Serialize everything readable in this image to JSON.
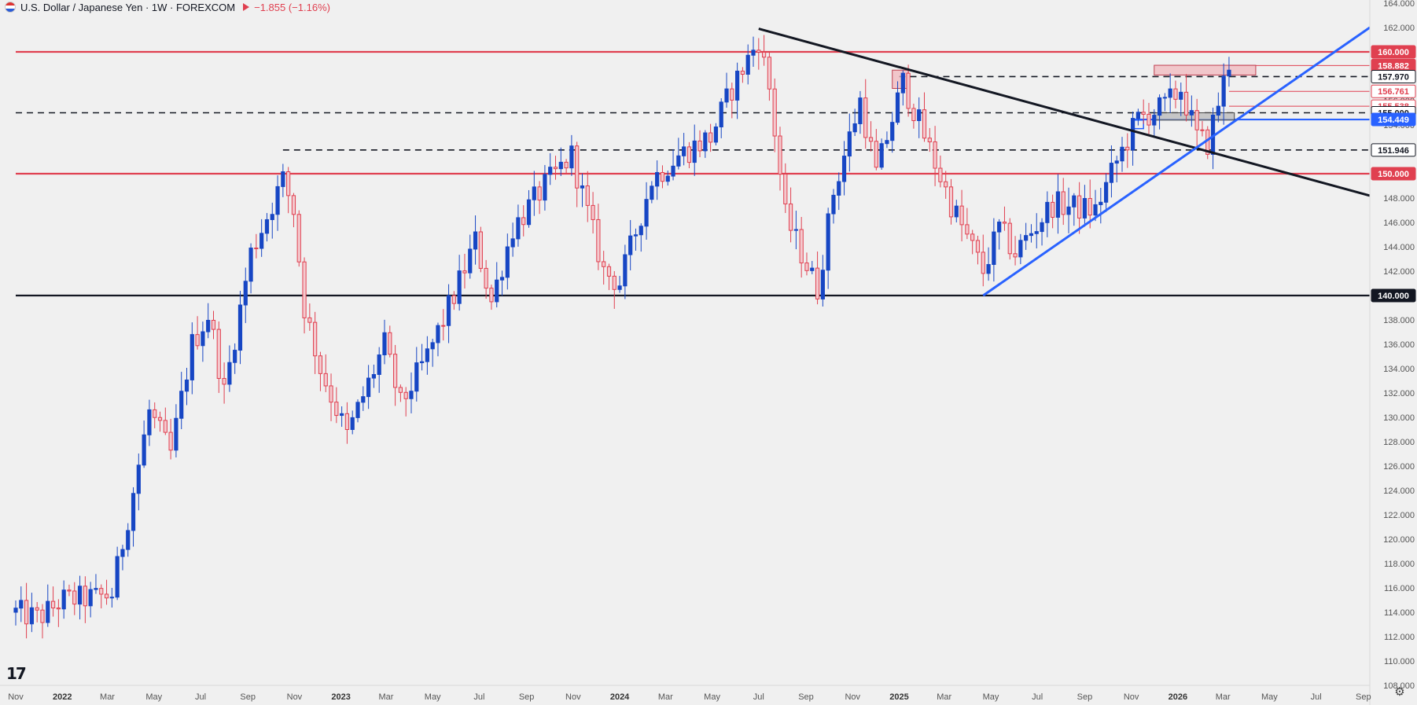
{
  "header": {
    "title": "U.S. Dollar / Japanese Yen · 1W · FOREXCOM",
    "change": "−1.855 (−1.16%)"
  },
  "colors": {
    "background": "#f0f0f0",
    "up": "#1746c4",
    "down": "#e04050",
    "red_line": "#e04050",
    "blue_line": "#2962ff",
    "black_line": "#131722"
  },
  "icons": [
    "us-flag-icon",
    "tradingview-logo-icon",
    "settings-gear-icon"
  ],
  "chart_data": {
    "type": "candlestick",
    "y_axis": {
      "min": 108,
      "max": 164,
      "tick_step": 2,
      "tick_labels": [
        "164.000",
        "162.000",
        "160.000",
        "158.000",
        "156.000",
        "154.000",
        "152.000",
        "150.000",
        "148.000",
        "146.000",
        "144.000",
        "142.000",
        "140.000",
        "138.000",
        "136.000",
        "134.000",
        "132.000",
        "130.000",
        "128.000",
        "126.000",
        "124.000",
        "122.000",
        "120.000",
        "118.000",
        "116.000",
        "114.000",
        "112.000",
        "110.000",
        "108.000"
      ]
    },
    "x_axis": {
      "start": "2021-11-01",
      "end": "2026-09-30",
      "tick_labels": [
        {
          "label": "Nov",
          "date": "2021-11-01"
        },
        {
          "label": "2022",
          "date": "2022-01-01"
        },
        {
          "label": "Mar",
          "date": "2022-03-01"
        },
        {
          "label": "May",
          "date": "2022-05-01"
        },
        {
          "label": "Jul",
          "date": "2022-07-01"
        },
        {
          "label": "Sep",
          "date": "2022-09-01"
        },
        {
          "label": "Nov",
          "date": "2022-11-01"
        },
        {
          "label": "2023",
          "date": "2023-01-01"
        },
        {
          "label": "Mar",
          "date": "2023-03-01"
        },
        {
          "label": "May",
          "date": "2023-05-01"
        },
        {
          "label": "Jul",
          "date": "2023-07-01"
        },
        {
          "label": "Sep",
          "date": "2023-09-01"
        },
        {
          "label": "Nov",
          "date": "2023-11-01"
        },
        {
          "label": "2024",
          "date": "2024-01-01"
        },
        {
          "label": "Mar",
          "date": "2024-03-01"
        },
        {
          "label": "May",
          "date": "2024-05-01"
        },
        {
          "label": "Jul",
          "date": "2024-07-01"
        },
        {
          "label": "Sep",
          "date": "2024-09-01"
        },
        {
          "label": "Nov",
          "date": "2024-11-01"
        },
        {
          "label": "2025",
          "date": "2025-01-01"
        },
        {
          "label": "Mar",
          "date": "2025-03-01"
        },
        {
          "label": "May",
          "date": "2025-05-01"
        },
        {
          "label": "Jul",
          "date": "2025-07-01"
        },
        {
          "label": "Sep",
          "date": "2025-09-01"
        },
        {
          "label": "Nov",
          "date": "2025-11-01"
        },
        {
          "label": "2026",
          "date": "2026-01-01"
        },
        {
          "label": "Mar",
          "date": "2026-03-01"
        },
        {
          "label": "May",
          "date": "2026-05-01"
        },
        {
          "label": "Jul",
          "date": "2026-07-01"
        },
        {
          "label": "Sep",
          "date": "2026-09-01"
        }
      ]
    },
    "price_anchors": [
      {
        "date": "2021-11-01",
        "close": 114.0
      },
      {
        "date": "2021-12-01",
        "close": 113.5
      },
      {
        "date": "2022-01-01",
        "close": 115.0
      },
      {
        "date": "2022-02-15",
        "close": 115.2
      },
      {
        "date": "2022-03-07",
        "close": 115.5
      },
      {
        "date": "2022-04-01",
        "close": 123.0
      },
      {
        "date": "2022-04-25",
        "close": 130.5
      },
      {
        "date": "2022-05-23",
        "close": 127.0
      },
      {
        "date": "2022-06-20",
        "close": 136.0
      },
      {
        "date": "2022-07-12",
        "close": 138.5
      },
      {
        "date": "2022-08-01",
        "close": 132.0
      },
      {
        "date": "2022-09-05",
        "close": 143.5
      },
      {
        "date": "2022-10-17",
        "close": 149.5
      },
      {
        "date": "2022-10-31",
        "close": 147.0
      },
      {
        "date": "2022-11-14",
        "close": 139.0
      },
      {
        "date": "2022-12-05",
        "close": 134.0
      },
      {
        "date": "2023-01-09",
        "close": 128.5
      },
      {
        "date": "2023-02-27",
        "close": 136.0
      },
      {
        "date": "2023-03-20",
        "close": 131.0
      },
      {
        "date": "2023-04-24",
        "close": 135.0
      },
      {
        "date": "2023-05-29",
        "close": 140.0
      },
      {
        "date": "2023-06-26",
        "close": 144.5
      },
      {
        "date": "2023-07-17",
        "close": 139.5
      },
      {
        "date": "2023-08-14",
        "close": 145.5
      },
      {
        "date": "2023-09-25",
        "close": 149.0
      },
      {
        "date": "2023-10-30",
        "close": 151.5
      },
      {
        "date": "2023-12-11",
        "close": 142.0
      },
      {
        "date": "2024-01-01",
        "close": 141.0
      },
      {
        "date": "2024-02-12",
        "close": 149.5
      },
      {
        "date": "2024-03-18",
        "close": 151.5
      },
      {
        "date": "2024-04-29",
        "close": 153.0
      },
      {
        "date": "2024-05-27",
        "close": 157.0
      },
      {
        "date": "2024-07-01",
        "close": 161.0
      },
      {
        "date": "2024-07-15",
        "close": 157.0
      },
      {
        "date": "2024-08-05",
        "close": 146.5
      },
      {
        "date": "2024-09-16",
        "close": 140.5
      },
      {
        "date": "2024-10-07",
        "close": 148.5
      },
      {
        "date": "2024-11-11",
        "close": 156.0
      },
      {
        "date": "2024-12-02",
        "close": 150.0
      },
      {
        "date": "2025-01-06",
        "close": 157.5
      },
      {
        "date": "2025-02-10",
        "close": 152.0
      },
      {
        "date": "2025-03-10",
        "close": 147.5
      },
      {
        "date": "2025-04-21",
        "close": 142.0
      },
      {
        "date": "2025-05-12",
        "close": 145.5
      },
      {
        "date": "2025-06-02",
        "close": 143.5
      },
      {
        "date": "2025-07-21",
        "close": 147.5
      },
      {
        "date": "2025-09-15",
        "close": 147.0
      },
      {
        "date": "2025-10-13",
        "close": 151.0
      },
      {
        "date": "2025-11-10",
        "close": 154.5
      },
      {
        "date": "2025-12-15",
        "close": 155.5
      },
      {
        "date": "2026-01-05",
        "close": 157.0
      },
      {
        "date": "2026-01-26",
        "close": 153.0
      },
      {
        "date": "2026-02-09",
        "close": 152.5
      },
      {
        "date": "2026-03-02",
        "close": 157.5
      },
      {
        "date": "2026-03-09",
        "close": 158.5
      }
    ],
    "horizontal_levels": [
      {
        "price": 160.0,
        "label": "160.000",
        "style": "solid",
        "color": "#e04050",
        "from": "2021-11-01"
      },
      {
        "price": 150.0,
        "label": "150.000",
        "style": "solid",
        "color": "#e04050",
        "from": "2021-11-01"
      },
      {
        "price": 140.0,
        "label": "140.000",
        "style": "solid",
        "color": "#131722",
        "from": "2021-11-01"
      },
      {
        "price": 158.882,
        "label": "158.882",
        "style": "thin",
        "color": "#e04050",
        "from": "2026-03-09"
      },
      {
        "price": 157.97,
        "label": "157.970",
        "style": "dashed",
        "color": "#131722",
        "from": "2025-01-01"
      },
      {
        "price": 156.761,
        "label": "156.761",
        "style": "thin",
        "color": "#e04050",
        "from": "2026-03-09"
      },
      {
        "price": 155.538,
        "label": "155.538",
        "style": "thin",
        "color": "#e04050",
        "from": "2026-03-09"
      },
      {
        "price": 155.0,
        "label": "155.000",
        "style": "dashed",
        "color": "#131722",
        "from": "2021-11-01"
      },
      {
        "price": 154.449,
        "label": "154.449",
        "style": "solid",
        "color": "#2962ff",
        "from": "2025-11-03"
      },
      {
        "price": 151.946,
        "label": "151.946",
        "style": "dashed",
        "color": "#131722",
        "from": "2022-10-17"
      }
    ],
    "trendlines": [
      {
        "color": "#131722",
        "start": {
          "date": "2024-07-01",
          "price": 161.9
        },
        "end": {
          "date": "2026-09-30",
          "price": 148.2
        }
      },
      {
        "color": "#2962ff",
        "start": {
          "date": "2025-04-21",
          "price": 140.0
        },
        "end": {
          "date": "2026-09-30",
          "price": 162.0
        }
      }
    ],
    "zones": [
      {
        "type": "supply",
        "color": "#f2b8be",
        "from": "2024-12-23",
        "to": "2025-01-13",
        "low": 157.0,
        "high": 158.5
      },
      {
        "type": "supply",
        "color": "#f2b8be",
        "from": "2025-12-01",
        "to": "2026-04-13",
        "low": 158.1,
        "high": 158.9
      },
      {
        "type": "support",
        "color": "#b8b8b8",
        "from": "2025-12-01",
        "to": "2026-03-16",
        "low": 154.4,
        "high": 155.0
      },
      {
        "type": "support-outline",
        "color": "#2962ff",
        "from": "2025-11-03",
        "to": "2025-11-17",
        "low": 153.7,
        "high": 154.4
      }
    ],
    "last_price": 158.882
  }
}
